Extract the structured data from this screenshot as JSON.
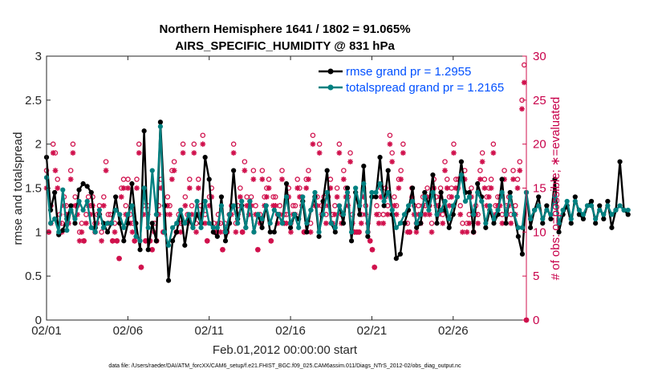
{
  "chart_data": {
    "type": "line",
    "title": "Northern Hemisphere 1641 / 1802 = 91.065%",
    "subtitle": "AIRS_SPECIFIC_HUMIDITY @ 831 hPa",
    "xlabel": "Feb.01,2012 00:00:00 start",
    "ylabel": "rmse and totalspread",
    "y2label": "# of obs: o=possible; ∗=evaluated",
    "footer": "data file: /Users/raeder/DAI/ATM_forcXX/CAM6_setup/f.e21.FHIST_BGC.f09_025.CAM6assim.011/Diags_NTrS_2012-02/obs_diag_output.nc",
    "xlim": [
      0,
      29.5
    ],
    "ylim": [
      0,
      3
    ],
    "y2lim": [
      0,
      30
    ],
    "x_ticks": [
      0,
      5,
      10,
      15,
      20,
      25
    ],
    "x_tick_labels": [
      "02/01",
      "02/06",
      "02/11",
      "02/16",
      "02/21",
      "02/26"
    ],
    "y_ticks": [
      0,
      0.5,
      1,
      1.5,
      2,
      2.5,
      3
    ],
    "y_tick_labels": [
      "0",
      "0.5",
      "1",
      "1.5",
      "2",
      "2.5",
      "3"
    ],
    "y2_ticks": [
      0,
      5,
      10,
      15,
      20,
      25,
      30
    ],
    "y2_tick_labels": [
      "0",
      "5",
      "10",
      "15",
      "20",
      "25",
      "30"
    ],
    "legend": {
      "position": "top-right",
      "entries": [
        "rmse grand pr = 1.2955",
        "totalspread grand pr = 1.2165"
      ]
    },
    "colors": {
      "rmse": "#000000",
      "totalspread": "#008080",
      "obs": "#d0104c",
      "axis": "#262626",
      "legend_text": "#0050ff"
    },
    "x_step": 0.25,
    "series": [
      {
        "name": "rmse",
        "axis": "left",
        "values": [
          1.85,
          1.25,
          1.45,
          0.97,
          1.02,
          1.15,
          1.3,
          1.1,
          1.48,
          1.55,
          1.52,
          1.45,
          1.05,
          1.2,
          1.1,
          1.0,
          1.1,
          1.4,
          1.1,
          0.9,
          1.1,
          1.55,
          1.1,
          0.8,
          2.15,
          0.8,
          1.1,
          0.9,
          2.25,
          1.3,
          0.45,
          0.9,
          1.0,
          1.25,
          0.85,
          1.15,
          1.05,
          1.2,
          1.1,
          1.85,
          1.6,
          1.0,
          0.95,
          1.4,
          0.9,
          1.1,
          1.7,
          1.15,
          1.3,
          1.05,
          1.35,
          1.0,
          1.2,
          1.05,
          1.3,
          1.0,
          1.0,
          1.2,
          1.1,
          1.55,
          1.05,
          1.2,
          1.15,
          1.35,
          1.0,
          1.25,
          1.4,
          0.95,
          1.35,
          1.7,
          1.1,
          1.0,
          1.3,
          1.1,
          1.5,
          0.9,
          1.45,
          1.2,
          1.75,
          0.95,
          1.4,
          1.4,
          1.85,
          1.3,
          1.7,
          1.2,
          0.7,
          0.75,
          1.1,
          1.25,
          1.5,
          1.05,
          1.1,
          1.45,
          1.3,
          1.65,
          1.1,
          1.45,
          1.25,
          1.05,
          1.2,
          1.4,
          1.8,
          1.45,
          1.45,
          1.0,
          1.55,
          1.4,
          1.05,
          1.25,
          1.1,
          1.2,
          1.6,
          1.1,
          1.45,
          1.2,
          0.95,
          0.75,
          1.45,
          1.05,
          1.25,
          1.4,
          1.1,
          1.3,
          1.15,
          1.6,
          1.0,
          1.2,
          1.3,
          1.1,
          1.4,
          1.2,
          1.15,
          1.3,
          1.35,
          1.1,
          1.3,
          1.15,
          1.35,
          1.05,
          1.25,
          1.8,
          1.25,
          1.2
        ]
      },
      {
        "name": "totalspread",
        "axis": "left",
        "values": [
          1.62,
          1.1,
          1.15,
          1.0,
          1.48,
          1.02,
          1.25,
          1.15,
          1.35,
          1.25,
          1.35,
          1.05,
          1.0,
          1.25,
          1.05,
          1.1,
          1.1,
          1.25,
          1.2,
          1.05,
          1.2,
          1.3,
          0.95,
          0.9,
          1.5,
          1.05,
          1.7,
          1.2,
          2.2,
          1.0,
          0.85,
          1.05,
          1.1,
          1.25,
          1.1,
          1.2,
          1.05,
          1.35,
          1.05,
          1.35,
          1.1,
          1.05,
          1.05,
          1.3,
          1.0,
          1.2,
          1.3,
          1.1,
          1.35,
          1.05,
          1.35,
          1.0,
          1.2,
          1.15,
          1.3,
          1.1,
          1.25,
          1.2,
          1.1,
          1.4,
          1.1,
          1.2,
          1.05,
          1.4,
          1.1,
          1.25,
          1.45,
          1.0,
          1.2,
          1.45,
          1.1,
          1.05,
          1.3,
          1.2,
          1.45,
          1.0,
          1.5,
          1.3,
          1.55,
          1.0,
          1.45,
          1.45,
          1.55,
          1.35,
          1.45,
          1.25,
          1.05,
          1.1,
          1.2,
          1.3,
          1.35,
          1.1,
          1.2,
          1.4,
          1.25,
          1.45,
          1.2,
          1.25,
          1.35,
          1.15,
          1.3,
          1.4,
          1.65,
          1.35,
          1.4,
          1.2,
          1.45,
          1.35,
          1.1,
          1.3,
          1.15,
          1.25,
          1.45,
          1.2,
          1.4,
          1.2,
          1.05,
          1.05,
          1.45,
          1.15,
          1.25,
          1.3,
          1.15,
          1.25,
          1.2,
          1.4,
          1.1,
          1.25,
          1.35,
          1.15,
          1.35,
          1.25,
          1.2,
          1.3,
          1.3,
          1.15,
          1.25,
          1.2,
          1.3,
          1.2,
          1.25,
          1.3,
          1.25,
          1.25
        ]
      },
      {
        "name": "possible obs",
        "axis": "right",
        "marker": "o",
        "values": [
          17,
          10,
          13,
          20,
          19,
          16,
          12,
          11,
          14,
          13,
          12,
          17,
          20,
          14,
          13,
          10,
          11,
          9,
          12,
          14,
          13,
          14,
          11,
          12,
          13,
          10,
          14,
          18,
          12,
          12,
          9,
          11,
          9,
          7,
          15,
          16,
          13,
          16,
          12,
          11,
          9,
          16,
          20,
          6,
          13,
          9,
          13,
          9,
          8,
          11,
          9,
          13,
          16,
          10,
          13,
          14,
          13,
          17,
          18,
          10,
          12,
          11,
          20,
          14,
          12,
          16,
          13,
          20,
          11,
          16,
          13,
          21,
          12,
          9,
          14,
          15,
          11,
          10,
          12,
          11,
          8,
          11,
          10,
          12,
          13,
          20,
          11,
          13,
          15,
          10,
          18,
          14,
          13,
          14,
          17,
          13,
          8,
          12,
          17,
          14,
          15,
          16,
          9,
          14,
          14,
          12,
          13,
          17,
          12,
          12,
          15,
          11,
          13,
          13,
          16,
          15,
          14,
          10,
          16,
          17,
          11,
          21,
          14,
          14,
          20,
          13,
          14,
          12,
          14,
          16,
          12,
          13,
          15,
          20,
          12,
          17,
          15,
          14,
          19,
          12,
          10,
          10,
          10,
          12,
          15,
          13,
          11,
          9,
          8,
          6,
          13,
          12,
          15,
          12,
          15,
          13,
          21,
          19,
          14,
          13,
          16,
          17,
          20,
          12,
          11,
          10,
          15,
          13,
          11,
          13,
          12,
          14,
          13,
          15,
          13,
          11,
          16,
          14,
          13,
          15,
          12,
          18,
          16,
          14,
          15,
          20,
          16,
          16,
          13,
          11,
          17,
          11,
          12,
          15,
          10,
          13,
          12,
          17,
          19,
          16,
          14,
          15,
          16,
          20,
          13,
          14,
          14,
          12,
          17,
          13,
          14,
          12,
          17,
          13,
          16,
          18,
          25,
          29,
          0
        ]
      },
      {
        "name": "evaluated obs",
        "axis": "right",
        "marker": "*",
        "values": [
          15,
          10,
          11,
          19,
          17,
          15,
          11,
          10,
          13,
          12,
          11,
          16,
          19,
          13,
          12,
          9,
          10,
          9,
          11,
          13,
          12,
          13,
          10,
          11,
          12,
          9,
          13,
          17,
          11,
          11,
          9,
          10,
          9,
          7,
          14,
          15,
          12,
          15,
          11,
          10,
          9,
          15,
          19,
          6,
          12,
          9,
          12,
          9,
          8,
          10,
          9,
          12,
          15,
          10,
          12,
          13,
          12,
          16,
          17,
          10,
          11,
          10,
          19,
          13,
          11,
          15,
          12,
          19,
          10,
          15,
          12,
          20,
          11,
          9,
          13,
          14,
          10,
          10,
          11,
          10,
          8,
          10,
          10,
          11,
          12,
          19,
          10,
          12,
          14,
          10,
          17,
          13,
          12,
          13,
          16,
          12,
          8,
          11,
          16,
          13,
          14,
          15,
          9,
          13,
          13,
          11,
          12,
          16,
          11,
          11,
          14,
          10,
          12,
          12,
          15,
          14,
          13,
          10,
          15,
          16,
          10,
          20,
          13,
          13,
          19,
          12,
          13,
          11,
          13,
          15,
          11,
          12,
          14,
          19,
          11,
          16,
          14,
          13,
          18,
          11,
          10,
          10,
          10,
          11,
          14,
          12,
          10,
          9,
          8,
          6,
          12,
          11,
          14,
          11,
          14,
          12,
          20,
          18,
          13,
          12,
          15,
          16,
          19,
          11,
          10,
          10,
          14,
          12,
          10,
          12,
          11,
          13,
          12,
          14,
          12,
          10,
          15,
          13,
          12,
          14,
          11,
          17,
          15,
          13,
          14,
          19,
          15,
          15,
          12,
          10,
          16,
          10,
          11,
          14,
          10,
          12,
          11,
          16,
          18,
          15,
          13,
          14,
          15,
          19,
          12,
          13,
          13,
          11,
          16,
          12,
          13,
          11,
          16,
          12,
          15,
          17,
          24,
          27,
          0
        ]
      }
    ],
    "obs_x": [],
    "annotations": []
  }
}
